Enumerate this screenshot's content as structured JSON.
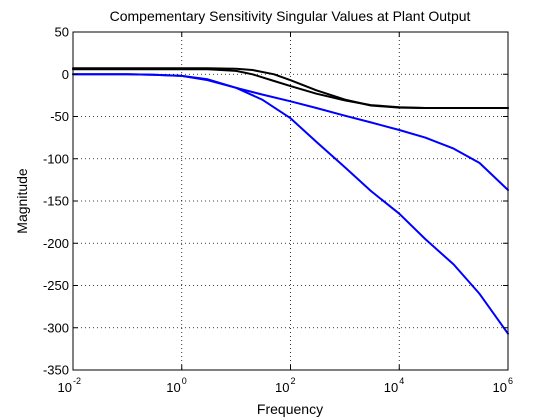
{
  "chart_data": {
    "type": "line",
    "title": "Compementary Sensitivity Singular Values at Plant Output",
    "xlabel": "Frequency",
    "ylabel": "Magnitude",
    "xscale": "log",
    "xlim": [
      0.01,
      1000000
    ],
    "ylim": [
      -350,
      50
    ],
    "grid": true,
    "x_ticks": [
      {
        "base": "10",
        "exp": "-2",
        "value": 0.01
      },
      {
        "base": "10",
        "exp": "0",
        "value": 1
      },
      {
        "base": "10",
        "exp": "2",
        "value": 100
      },
      {
        "base": "10",
        "exp": "4",
        "value": 10000
      },
      {
        "base": "10",
        "exp": "6",
        "value": 1000000
      }
    ],
    "y_ticks": [
      "50",
      "0",
      "-50",
      "-100",
      "-150",
      "-200",
      "-250",
      "-300",
      "-350"
    ],
    "colors": {
      "black": "#000000",
      "blue": "#0000ff"
    },
    "series": [
      {
        "color": "#000000",
        "x": [
          0.01,
          0.1,
          1,
          3,
          10,
          20,
          50,
          100,
          300,
          1000,
          3000,
          10000,
          30000,
          100000,
          1000000
        ],
        "y": [
          7,
          7,
          7,
          7,
          6.5,
          5,
          0,
          -7,
          -19,
          -30,
          -37,
          -39.5,
          -40,
          -40,
          -40
        ]
      },
      {
        "color": "#000000",
        "x": [
          0.01,
          0.1,
          1,
          3,
          10,
          20,
          50,
          100,
          300,
          1000,
          3000,
          10000,
          30000,
          100000,
          1000000
        ],
        "y": [
          6,
          6,
          6,
          6,
          4,
          0,
          -8,
          -14,
          -23,
          -31,
          -36.5,
          -39,
          -40,
          -40,
          -40
        ]
      },
      {
        "color": "#0000ff",
        "x": [
          0.01,
          0.1,
          0.3,
          1,
          3,
          10,
          30,
          100,
          300,
          1000,
          3000,
          10000,
          30000,
          100000,
          300000,
          1000000
        ],
        "y": [
          0,
          0,
          -0.5,
          -2,
          -7,
          -16,
          -24,
          -32,
          -40,
          -49,
          -57,
          -66,
          -75,
          -88,
          -105,
          -137
        ]
      },
      {
        "color": "#0000ff",
        "x": [
          0.01,
          0.1,
          0.3,
          1,
          3,
          10,
          30,
          100,
          300,
          1000,
          3000,
          10000,
          30000,
          100000,
          300000,
          1000000
        ],
        "y": [
          0,
          0,
          -0.5,
          -2,
          -6,
          -16,
          -30,
          -52,
          -80,
          -110,
          -138,
          -165,
          -195,
          -225,
          -260,
          -307
        ]
      }
    ]
  }
}
